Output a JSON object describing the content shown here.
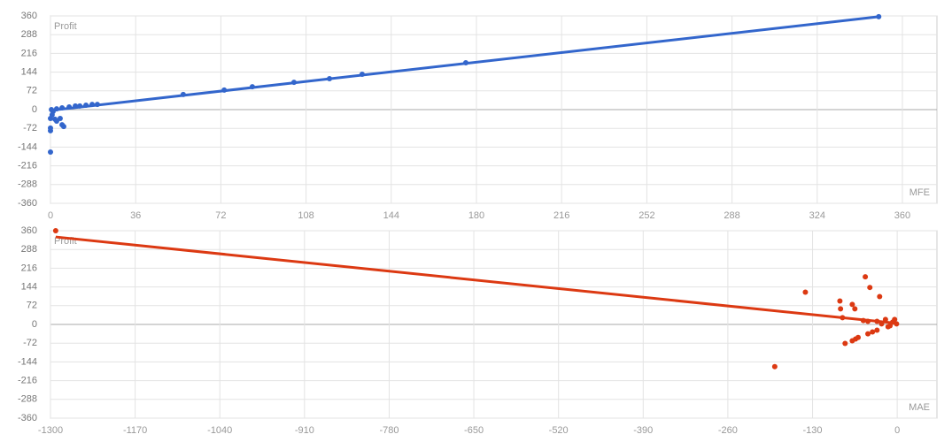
{
  "chart_data": [
    {
      "type": "scatter",
      "x_label": "MFE",
      "y_label": "Profit",
      "color": "#3366cc",
      "grid": true,
      "xlim": [
        0,
        374.6
      ],
      "xticks": [
        0,
        36,
        72,
        108,
        144,
        180,
        216,
        252,
        288,
        324,
        360
      ],
      "ylim": [
        -360,
        360
      ],
      "yticks": [
        -360,
        -288,
        -216,
        -144,
        -72,
        0,
        72,
        144,
        216,
        288,
        360
      ],
      "x": [
        350,
        175.5,
        131.7,
        117.9,
        102.9,
        85.3,
        73.4,
        56.1,
        19.8,
        17.6,
        15,
        12.4,
        10.5,
        7.9,
        4.9,
        2.6,
        0.4,
        1.1,
        0,
        0,
        0,
        0,
        1.9,
        2.6,
        4.1,
        4.9,
        5.6,
        0.7
      ],
      "values": [
        357,
        180,
        136,
        119,
        105,
        88,
        75,
        58,
        20,
        20,
        17,
        14,
        14,
        10,
        7,
        3,
        0,
        -7,
        -34,
        -71,
        -81,
        -163,
        -37,
        -44,
        -34,
        -58,
        -65,
        -20
      ],
      "trendline": {
        "x": [
          0,
          350
        ],
        "values": [
          -3,
          357
        ]
      }
    },
    {
      "type": "scatter",
      "x_label": "MAE",
      "y_label": "Profit",
      "color": "#dc3912",
      "grid": true,
      "xlim": [
        -1300,
        61
      ],
      "xticks": [
        -1300,
        -1170,
        -1040,
        -910,
        -780,
        -650,
        -520,
        -390,
        -260,
        -130,
        0
      ],
      "ylim": [
        -360,
        360
      ],
      "yticks": [
        -360,
        -288,
        -216,
        -144,
        -72,
        0,
        72,
        144,
        216,
        288,
        360
      ],
      "x": [
        -1292,
        -188,
        -141,
        -88,
        -87,
        -84,
        -80,
        -69,
        -65,
        -69,
        -64,
        -60,
        -49,
        -42,
        -27,
        -45,
        -38,
        -31,
        -52,
        -45,
        -31,
        -18,
        -11,
        -7,
        -4,
        -1,
        -14,
        -24
      ],
      "values": [
        360,
        -162,
        124,
        90,
        60,
        26,
        -73,
        77,
        60,
        -63,
        -56,
        -50,
        183,
        142,
        107,
        -36,
        -29,
        -22,
        15,
        12,
        12,
        19,
        -5,
        9,
        19,
        2,
        -9,
        2
      ],
      "trendline": {
        "x": [
          -1292,
          -3
        ],
        "values": [
          336,
          5
        ]
      }
    }
  ]
}
